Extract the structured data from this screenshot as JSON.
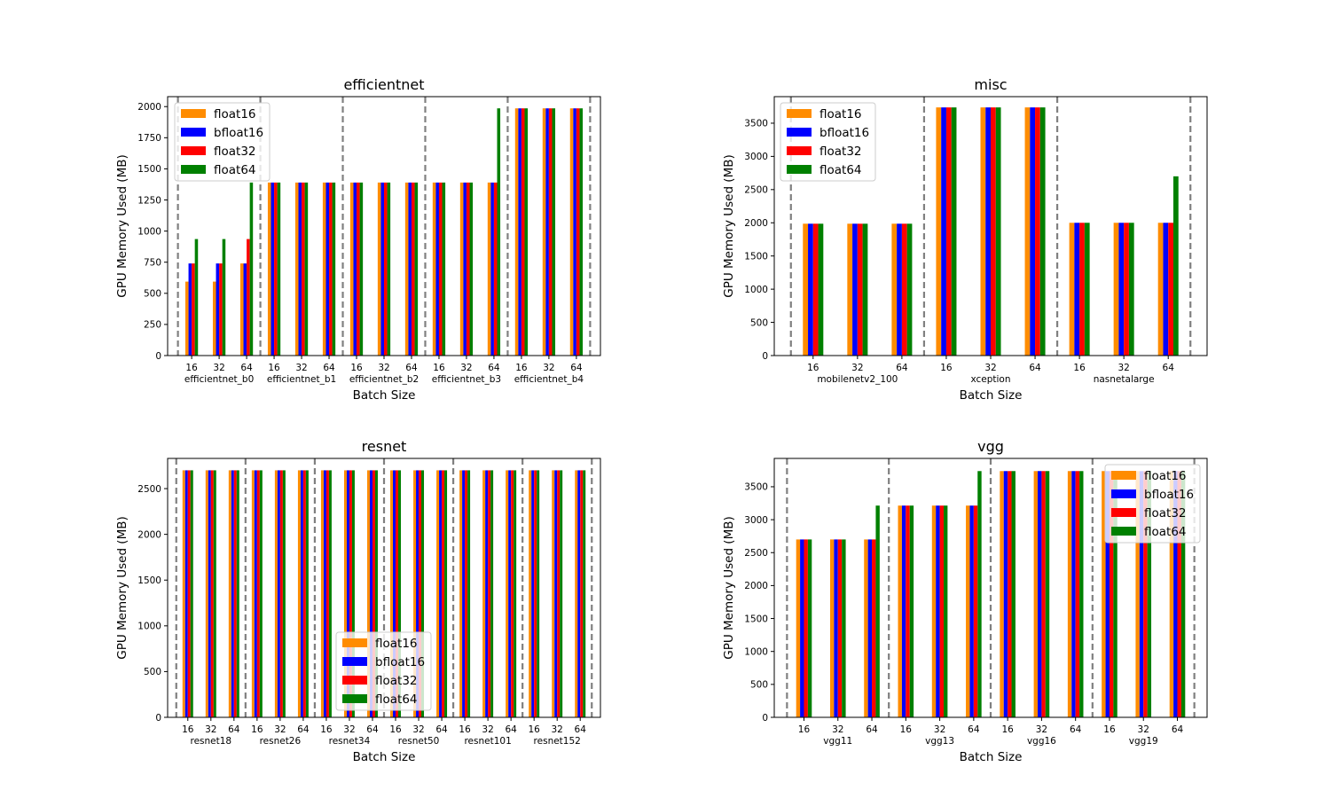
{
  "colors": {
    "float16": "#ff8c00",
    "bfloat16": "#0000ff",
    "float32": "#ff0000",
    "float64": "#008000",
    "separator": "#808080"
  },
  "chart_data": [
    {
      "type": "bar",
      "title": "efficientnet",
      "xlabel": "Batch Size",
      "ylabel": "GPU Memory Used (MB)",
      "ylim": [
        0,
        2080
      ],
      "yticks": [
        "0",
        "250",
        "500",
        "750",
        "1000",
        "1250",
        "1500",
        "1750",
        "2000"
      ],
      "legend": "top-left",
      "groups": [
        "efficientnet_b0",
        "efficientnet_b1",
        "efficientnet_b2",
        "efficientnet_b3",
        "efficientnet_b4"
      ],
      "batch_sizes": [
        "16",
        "32",
        "64"
      ],
      "series": [
        {
          "name": "float16",
          "values": [
            [
              594,
              594,
              740
            ],
            [
              1390,
              1390,
              1390
            ],
            [
              1390,
              1390,
              1390
            ],
            [
              1390,
              1390,
              1390
            ],
            [
              1986,
              1986,
              1986
            ]
          ]
        },
        {
          "name": "bfloat16",
          "values": [
            [
              740,
              740,
              740
            ],
            [
              1390,
              1390,
              1390
            ],
            [
              1390,
              1390,
              1390
            ],
            [
              1390,
              1390,
              1390
            ],
            [
              1986,
              1986,
              1986
            ]
          ]
        },
        {
          "name": "float32",
          "values": [
            [
              740,
              740,
              936
            ],
            [
              1390,
              1390,
              1390
            ],
            [
              1390,
              1390,
              1390
            ],
            [
              1390,
              1390,
              1390
            ],
            [
              1986,
              1986,
              1986
            ]
          ]
        },
        {
          "name": "float64",
          "values": [
            [
              936,
              936,
              1390
            ],
            [
              1390,
              1390,
              1390
            ],
            [
              1390,
              1390,
              1390
            ],
            [
              1390,
              1390,
              1986
            ],
            [
              1986,
              1986,
              1986
            ]
          ]
        }
      ]
    },
    {
      "type": "bar",
      "title": "misc",
      "xlabel": "Batch Size",
      "ylabel": "GPU Memory Used (MB)",
      "ylim": [
        0,
        3900
      ],
      "yticks": [
        "0",
        "500",
        "1000",
        "1500",
        "2000",
        "2500",
        "3000",
        "3500"
      ],
      "legend": "top-left",
      "groups": [
        "mobilenetv2_100",
        "xception",
        "nasnetalarge"
      ],
      "batch_sizes": [
        "16",
        "32",
        "64"
      ],
      "series": [
        {
          "name": "float16",
          "values": [
            [
              1986,
              1986,
              1986
            ],
            [
              3738,
              3738,
              3738
            ],
            [
              2000,
              2000,
              2000
            ]
          ]
        },
        {
          "name": "bfloat16",
          "values": [
            [
              1986,
              1986,
              1986
            ],
            [
              3738,
              3738,
              3738
            ],
            [
              2000,
              2000,
              2000
            ]
          ]
        },
        {
          "name": "float32",
          "values": [
            [
              1986,
              1986,
              1986
            ],
            [
              3738,
              3738,
              3738
            ],
            [
              2000,
              2000,
              2000
            ]
          ]
        },
        {
          "name": "float64",
          "values": [
            [
              1986,
              1986,
              1986
            ],
            [
              3738,
              3738,
              3738
            ],
            [
              2000,
              2000,
              2700
            ]
          ]
        }
      ]
    },
    {
      "type": "bar",
      "title": "resnet",
      "xlabel": "Batch Size",
      "ylabel": "GPU Memory Used (MB)",
      "ylim": [
        0,
        2830
      ],
      "yticks": [
        "0",
        "500",
        "1000",
        "1500",
        "2000",
        "2500"
      ],
      "legend": "bottom-center",
      "groups": [
        "resnet18",
        "resnet26",
        "resnet34",
        "resnet50",
        "resnet101",
        "resnet152"
      ],
      "batch_sizes": [
        "16",
        "32",
        "64"
      ],
      "series": [
        {
          "name": "float16",
          "values": [
            [
              2700,
              2700,
              2700
            ],
            [
              2700,
              2700,
              2700
            ],
            [
              2700,
              2700,
              2700
            ],
            [
              2700,
              2700,
              2700
            ],
            [
              2700,
              2700,
              2700
            ],
            [
              2700,
              2700,
              2700
            ]
          ]
        },
        {
          "name": "bfloat16",
          "values": [
            [
              2700,
              2700,
              2700
            ],
            [
              2700,
              2700,
              2700
            ],
            [
              2700,
              2700,
              2700
            ],
            [
              2700,
              2700,
              2700
            ],
            [
              2700,
              2700,
              2700
            ],
            [
              2700,
              2700,
              2700
            ]
          ]
        },
        {
          "name": "float32",
          "values": [
            [
              2700,
              2700,
              2700
            ],
            [
              2700,
              2700,
              2700
            ],
            [
              2700,
              2700,
              2700
            ],
            [
              2700,
              2700,
              2700
            ],
            [
              2700,
              2700,
              2700
            ],
            [
              2700,
              2700,
              2700
            ]
          ]
        },
        {
          "name": "float64",
          "values": [
            [
              2700,
              2700,
              2700
            ],
            [
              2700,
              2700,
              2700
            ],
            [
              2700,
              2700,
              2700
            ],
            [
              2700,
              2700,
              2700
            ],
            [
              2700,
              2700,
              2700
            ],
            [
              2700,
              2700,
              2700
            ]
          ]
        }
      ]
    },
    {
      "type": "bar",
      "title": "vgg",
      "xlabel": "Batch Size",
      "ylabel": "GPU Memory Used (MB)",
      "ylim": [
        0,
        3930
      ],
      "yticks": [
        "0",
        "500",
        "1000",
        "1500",
        "2000",
        "2500",
        "3000",
        "3500"
      ],
      "legend": "top-right",
      "groups": [
        "vgg11",
        "vgg13",
        "vgg16",
        "vgg19"
      ],
      "batch_sizes": [
        "16",
        "32",
        "64"
      ],
      "series": [
        {
          "name": "float16",
          "values": [
            [
              2700,
              2700,
              2700
            ],
            [
              3214,
              3214,
              3214
            ],
            [
              3738,
              3738,
              3738
            ],
            [
              3738,
              3738,
              3738
            ]
          ]
        },
        {
          "name": "bfloat16",
          "values": [
            [
              2700,
              2700,
              2700
            ],
            [
              3214,
              3214,
              3214
            ],
            [
              3738,
              3738,
              3738
            ],
            [
              3738,
              3738,
              3738
            ]
          ]
        },
        {
          "name": "float32",
          "values": [
            [
              2700,
              2700,
              2700
            ],
            [
              3214,
              3214,
              3214
            ],
            [
              3738,
              3738,
              3738
            ],
            [
              3738,
              3738,
              3738
            ]
          ]
        },
        {
          "name": "float64",
          "values": [
            [
              2700,
              2700,
              3214
            ],
            [
              3214,
              3214,
              3738
            ],
            [
              3738,
              3738,
              3738
            ],
            [
              3738,
              3738,
              3738
            ]
          ]
        }
      ]
    }
  ]
}
